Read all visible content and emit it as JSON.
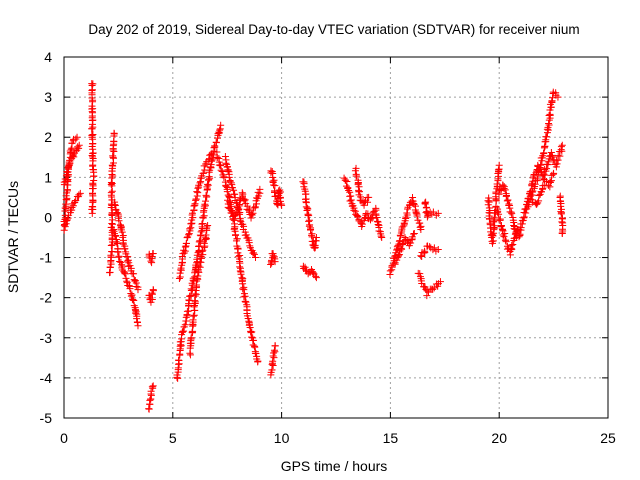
{
  "chart_data": {
    "type": "scatter",
    "title": "Day 202 of 2019, Sidereal Day-to-day VTEC variation (SDTVAR) for receiver nium",
    "xlabel": "GPS time / hours",
    "ylabel": "SDTVAR / TECUs",
    "xlim": [
      0,
      25
    ],
    "ylim": [
      -5,
      4
    ],
    "xticks": [
      0,
      5,
      10,
      15,
      20,
      25
    ],
    "yticks": [
      -5,
      -4,
      -3,
      -2,
      -1,
      0,
      1,
      2,
      3,
      4
    ],
    "grid": true,
    "marker": "+",
    "color": "#ff0000",
    "series": [
      {
        "name": "SDTVAR",
        "tracks": [
          [
            [
              0.0,
              -0.3
            ],
            [
              0.1,
              0.4
            ],
            [
              0.2,
              1.2
            ],
            [
              0.3,
              1.6
            ],
            [
              0.4,
              1.9
            ],
            [
              0.6,
              2.0
            ]
          ],
          [
            [
              0.0,
              0.8
            ],
            [
              0.15,
              1.1
            ],
            [
              0.3,
              1.4
            ],
            [
              0.5,
              1.6
            ],
            [
              0.7,
              1.8
            ]
          ],
          [
            [
              0.05,
              -0.2
            ],
            [
              0.2,
              0.0
            ],
            [
              0.4,
              0.3
            ],
            [
              0.6,
              0.5
            ],
            [
              0.75,
              0.6
            ]
          ],
          [
            [
              1.3,
              3.35
            ],
            [
              1.3,
              1.9
            ],
            [
              1.35,
              1.0
            ],
            [
              1.3,
              0.1
            ]
          ],
          [
            [
              2.1,
              -1.4
            ],
            [
              2.2,
              -0.8
            ],
            [
              2.2,
              0.0
            ],
            [
              2.2,
              0.8
            ],
            [
              2.25,
              1.4
            ],
            [
              2.3,
              2.1
            ]
          ],
          [
            [
              2.3,
              -0.3
            ],
            [
              2.5,
              -0.9
            ],
            [
              2.7,
              -1.3
            ],
            [
              2.9,
              -1.6
            ],
            [
              3.1,
              -1.9
            ],
            [
              3.3,
              -2.3
            ],
            [
              3.4,
              -2.7
            ]
          ],
          [
            [
              2.3,
              0.4
            ],
            [
              2.6,
              -0.2
            ],
            [
              2.8,
              -0.8
            ],
            [
              3.0,
              -1.2
            ],
            [
              3.2,
              -1.5
            ],
            [
              3.4,
              -1.8
            ]
          ],
          [
            [
              3.9,
              -4.8
            ],
            [
              4.0,
              -4.4
            ],
            [
              4.1,
              -4.2
            ]
          ],
          [
            [
              3.9,
              -1.9
            ],
            [
              4.0,
              -2.1
            ],
            [
              4.1,
              -1.8
            ]
          ],
          [
            [
              3.9,
              -0.9
            ],
            [
              4.0,
              -1.1
            ],
            [
              4.1,
              -0.9
            ]
          ],
          [
            [
              5.2,
              -4.0
            ],
            [
              5.3,
              -3.4
            ],
            [
              5.4,
              -3.0
            ],
            [
              5.6,
              -2.6
            ],
            [
              5.8,
              -2.0
            ],
            [
              6.0,
              -1.4
            ],
            [
              6.2,
              -0.8
            ],
            [
              6.4,
              0.0
            ],
            [
              6.6,
              0.8
            ],
            [
              6.8,
              1.4
            ],
            [
              7.0,
              1.9
            ],
            [
              7.2,
              2.3
            ]
          ],
          [
            [
              5.3,
              -1.5
            ],
            [
              5.5,
              -0.9
            ],
            [
              5.8,
              -0.3
            ],
            [
              6.0,
              0.3
            ],
            [
              6.2,
              0.8
            ],
            [
              6.5,
              1.3
            ],
            [
              6.8,
              1.6
            ]
          ],
          [
            [
              5.8,
              -3.4
            ],
            [
              5.9,
              -2.8
            ],
            [
              6.0,
              -2.2
            ],
            [
              6.1,
              -1.6
            ],
            [
              6.3,
              -1.0
            ],
            [
              6.5,
              -0.6
            ],
            [
              6.6,
              -0.2
            ]
          ],
          [
            [
              7.0,
              1.6
            ],
            [
              7.3,
              1.1
            ],
            [
              7.5,
              0.7
            ],
            [
              7.7,
              0.2
            ],
            [
              7.9,
              -0.4
            ],
            [
              8.1,
              -1.2
            ],
            [
              8.3,
              -2.0
            ],
            [
              8.5,
              -2.6
            ],
            [
              8.7,
              -3.1
            ],
            [
              8.9,
              -3.6
            ]
          ],
          [
            [
              7.4,
              1.5
            ],
            [
              7.6,
              1.0
            ],
            [
              7.8,
              0.6
            ],
            [
              8.0,
              0.2
            ],
            [
              8.2,
              -0.2
            ],
            [
              8.4,
              -0.5
            ],
            [
              8.6,
              -0.8
            ],
            [
              8.8,
              -1.0
            ]
          ],
          [
            [
              7.5,
              0.4
            ],
            [
              7.8,
              0.0
            ],
            [
              8.0,
              0.2
            ],
            [
              8.2,
              0.6
            ],
            [
              8.4,
              0.3
            ],
            [
              8.6,
              0.0
            ],
            [
              8.8,
              0.3
            ],
            [
              9.0,
              0.7
            ]
          ],
          [
            [
              9.5,
              -3.9
            ],
            [
              9.6,
              -3.6
            ],
            [
              9.7,
              -3.2
            ]
          ],
          [
            [
              9.5,
              -1.2
            ],
            [
              9.6,
              -0.9
            ],
            [
              9.7,
              -1.1
            ]
          ],
          [
            [
              9.5,
              1.2
            ],
            [
              9.6,
              1.0
            ],
            [
              9.7,
              0.6
            ],
            [
              9.8,
              0.3
            ],
            [
              9.9,
              0.7
            ],
            [
              10.0,
              0.3
            ]
          ],
          [
            [
              11.0,
              0.9
            ],
            [
              11.1,
              0.5
            ],
            [
              11.2,
              0.1
            ],
            [
              11.3,
              -0.2
            ],
            [
              11.4,
              -0.5
            ],
            [
              11.5,
              -0.8
            ],
            [
              11.6,
              -0.5
            ]
          ],
          [
            [
              11.0,
              -1.2
            ],
            [
              11.2,
              -1.4
            ],
            [
              11.4,
              -1.3
            ],
            [
              11.6,
              -1.5
            ]
          ],
          [
            [
              12.9,
              1.0
            ],
            [
              13.1,
              0.6
            ],
            [
              13.3,
              0.2
            ],
            [
              13.5,
              0.0
            ],
            [
              13.7,
              -0.2
            ],
            [
              13.9,
              0.1
            ],
            [
              14.1,
              -0.1
            ],
            [
              14.3,
              0.2
            ],
            [
              14.5,
              -0.3
            ],
            [
              14.6,
              -0.5
            ]
          ],
          [
            [
              13.4,
              1.2
            ],
            [
              13.5,
              0.9
            ],
            [
              13.6,
              0.5
            ],
            [
              13.8,
              0.3
            ],
            [
              14.0,
              0.5
            ]
          ],
          [
            [
              15.0,
              -1.4
            ],
            [
              15.2,
              -1.0
            ],
            [
              15.4,
              -0.6
            ],
            [
              15.6,
              -0.2
            ],
            [
              15.8,
              0.2
            ],
            [
              16.0,
              0.5
            ],
            [
              16.2,
              0.1
            ],
            [
              16.4,
              -0.3
            ]
          ],
          [
            [
              15.2,
              -1.2
            ],
            [
              15.5,
              -0.8
            ],
            [
              15.7,
              -0.5
            ],
            [
              15.9,
              -0.7
            ],
            [
              16.1,
              -0.4
            ]
          ],
          [
            [
              16.3,
              -1.4
            ],
            [
              16.5,
              -1.7
            ],
            [
              16.7,
              -1.9
            ],
            [
              16.9,
              -1.8
            ],
            [
              17.1,
              -1.7
            ],
            [
              17.3,
              -1.6
            ]
          ],
          [
            [
              16.4,
              -1.0
            ],
            [
              16.6,
              -0.8
            ],
            [
              16.8,
              -0.7
            ],
            [
              17.0,
              -0.8
            ],
            [
              17.2,
              -0.8
            ]
          ],
          [
            [
              16.6,
              0.4
            ],
            [
              16.7,
              0.0
            ],
            [
              16.8,
              0.1
            ],
            [
              17.0,
              0.1
            ],
            [
              17.2,
              0.1
            ]
          ],
          [
            [
              19.5,
              0.5
            ],
            [
              19.6,
              -0.3
            ],
            [
              19.7,
              -0.6
            ],
            [
              19.8,
              0.1
            ],
            [
              19.9,
              0.8
            ],
            [
              20.0,
              1.3
            ]
          ],
          [
            [
              19.9,
              0.2
            ],
            [
              20.1,
              -0.2
            ],
            [
              20.3,
              -0.6
            ],
            [
              20.5,
              -0.9
            ],
            [
              20.7,
              -0.5
            ],
            [
              20.9,
              -0.3
            ]
          ],
          [
            [
              20.0,
              0.6
            ],
            [
              20.2,
              0.8
            ],
            [
              20.4,
              0.4
            ],
            [
              20.6,
              0.0
            ],
            [
              20.8,
              -0.5
            ]
          ],
          [
            [
              20.9,
              -0.5
            ],
            [
              21.1,
              0.0
            ],
            [
              21.3,
              0.3
            ],
            [
              21.5,
              0.6
            ],
            [
              21.7,
              0.9
            ],
            [
              21.9,
              1.3
            ],
            [
              22.1,
              1.8
            ],
            [
              22.3,
              2.4
            ],
            [
              22.4,
              2.9
            ],
            [
              22.5,
              3.1
            ],
            [
              22.7,
              3.0
            ]
          ],
          [
            [
              21.2,
              0.2
            ],
            [
              21.4,
              0.6
            ],
            [
              21.6,
              1.0
            ],
            [
              21.8,
              1.3
            ],
            [
              22.0,
              1.0
            ],
            [
              22.2,
              1.3
            ],
            [
              22.4,
              1.6
            ],
            [
              22.6,
              1.3
            ],
            [
              22.8,
              1.6
            ],
            [
              22.9,
              1.8
            ]
          ],
          [
            [
              21.5,
              0.4
            ],
            [
              21.7,
              0.3
            ],
            [
              21.9,
              0.6
            ],
            [
              22.1,
              0.9
            ],
            [
              22.3,
              0.8
            ],
            [
              22.5,
              1.1
            ]
          ],
          [
            [
              22.8,
              0.5
            ],
            [
              22.85,
              0.2
            ],
            [
              22.9,
              -0.2
            ],
            [
              22.9,
              -0.4
            ]
          ]
        ]
      }
    ]
  }
}
